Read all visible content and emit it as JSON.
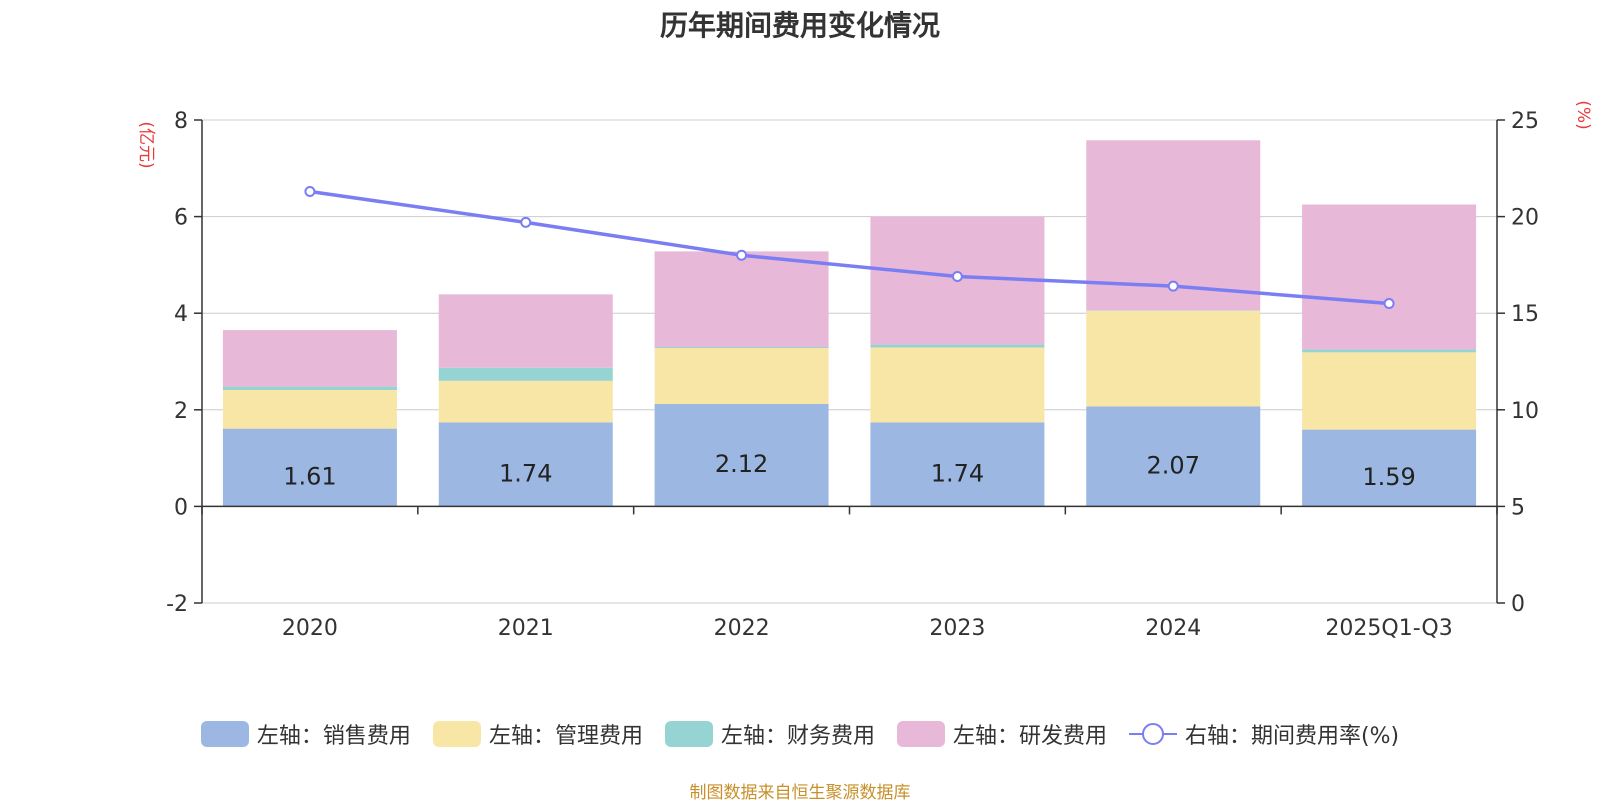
{
  "chart_data": {
    "type": "bar",
    "title": "历年期间费用变化情况",
    "categories": [
      "2020",
      "2021",
      "2022",
      "2023",
      "2024",
      "2025Q1-Q3"
    ],
    "left_axis": {
      "unit": "(亿元)",
      "ylim": [
        -2,
        8
      ],
      "ticks": [
        -2,
        0,
        2,
        4,
        6,
        8
      ]
    },
    "right_axis": {
      "unit": "(%)",
      "ylim": [
        0,
        25
      ],
      "ticks": [
        0,
        5,
        10,
        15,
        20,
        25
      ]
    },
    "series": [
      {
        "name": "左轴：销售费用",
        "kind": "bar",
        "axis": "left",
        "color": "#9cb8e2",
        "values": [
          1.61,
          1.74,
          2.12,
          1.74,
          2.07,
          1.59
        ],
        "labels": [
          "1.61",
          "1.74",
          "2.12",
          "1.74",
          "2.07",
          "1.59"
        ]
      },
      {
        "name": "左轴：管理费用",
        "kind": "bar",
        "axis": "left",
        "color": "#f7e6a6",
        "values": [
          0.8,
          0.86,
          1.16,
          1.55,
          1.98,
          1.6
        ]
      },
      {
        "name": "左轴：财务费用",
        "kind": "bar",
        "axis": "left",
        "color": "#96d4d3",
        "values": [
          0.07,
          0.27,
          0.02,
          0.06,
          0.01,
          0.06
        ]
      },
      {
        "name": "左轴：研发费用",
        "kind": "bar",
        "axis": "left",
        "color": "#e8b8d8",
        "values": [
          1.17,
          1.52,
          1.98,
          2.65,
          3.52,
          3.0
        ]
      },
      {
        "name": "右轴：期间费用率(%)",
        "kind": "line",
        "axis": "right",
        "color": "#7b7ef2",
        "values": [
          21.3,
          19.7,
          18.0,
          16.9,
          16.4,
          15.5
        ]
      }
    ],
    "grid": true,
    "legend_position": "bottom"
  },
  "source": "制图数据来自恒生聚源数据库"
}
